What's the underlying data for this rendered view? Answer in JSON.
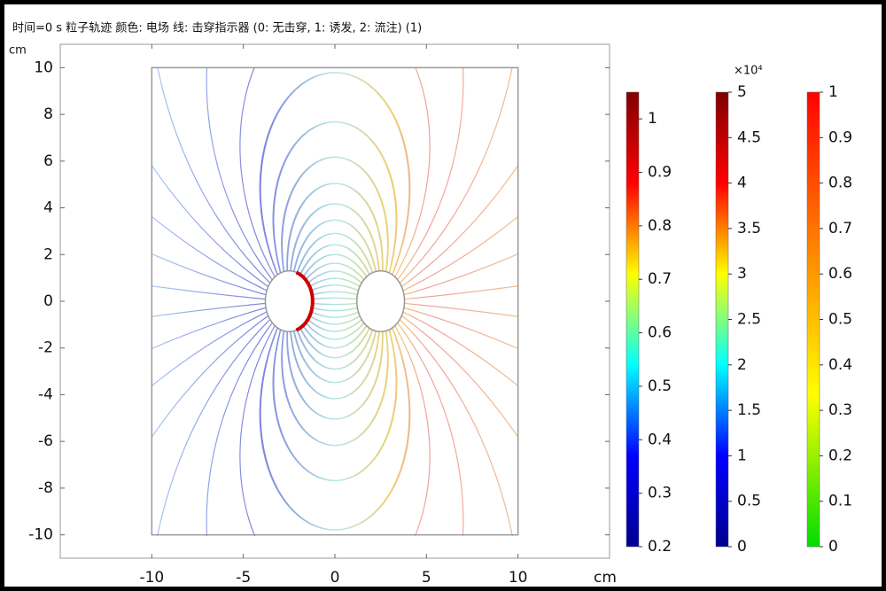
{
  "chart_data": {
    "type": "field-lines",
    "title": "时间=0 s 粒子轨迹 颜色: 电场 线: 击穿指示器 (0: 无击穿, 1: 诱发, 2: 流注) (1)",
    "x_label": "cm",
    "y_label": "cm",
    "xlim": [
      -15,
      15
    ],
    "ylim": [
      -11,
      11
    ],
    "xticks": [
      -10,
      -5,
      0,
      5,
      10
    ],
    "yticks": [
      -10,
      -8,
      -6,
      -4,
      -2,
      0,
      2,
      4,
      6,
      8,
      10
    ],
    "colorbars": [
      {
        "clim": [
          0.2,
          1.05
        ],
        "ticks": [
          0.2,
          0.3,
          0.4,
          0.5,
          0.6,
          0.7,
          0.8,
          0.9,
          1
        ],
        "colors": [
          "#00008f",
          "#0000ff",
          "#00ffff",
          "#ffff00",
          "#ff0000",
          "#800000"
        ]
      },
      {
        "multiplier": "×10⁴",
        "clim": [
          0,
          5
        ],
        "ticks": [
          0,
          0.5,
          1,
          1.5,
          2,
          2.5,
          3,
          3.5,
          4,
          4.5,
          5
        ],
        "colors": [
          "#00008f",
          "#0000ff",
          "#00ffff",
          "#ffff00",
          "#ff0000",
          "#800000"
        ]
      },
      {
        "clim": [
          0,
          1
        ],
        "ticks": [
          0,
          0.1,
          0.2,
          0.3,
          0.4,
          0.5,
          0.6,
          0.7,
          0.8,
          0.9,
          1
        ],
        "colors": [
          "#00dd00",
          "#ffff00",
          "#ff8000",
          "#ff0000"
        ]
      }
    ]
  }
}
